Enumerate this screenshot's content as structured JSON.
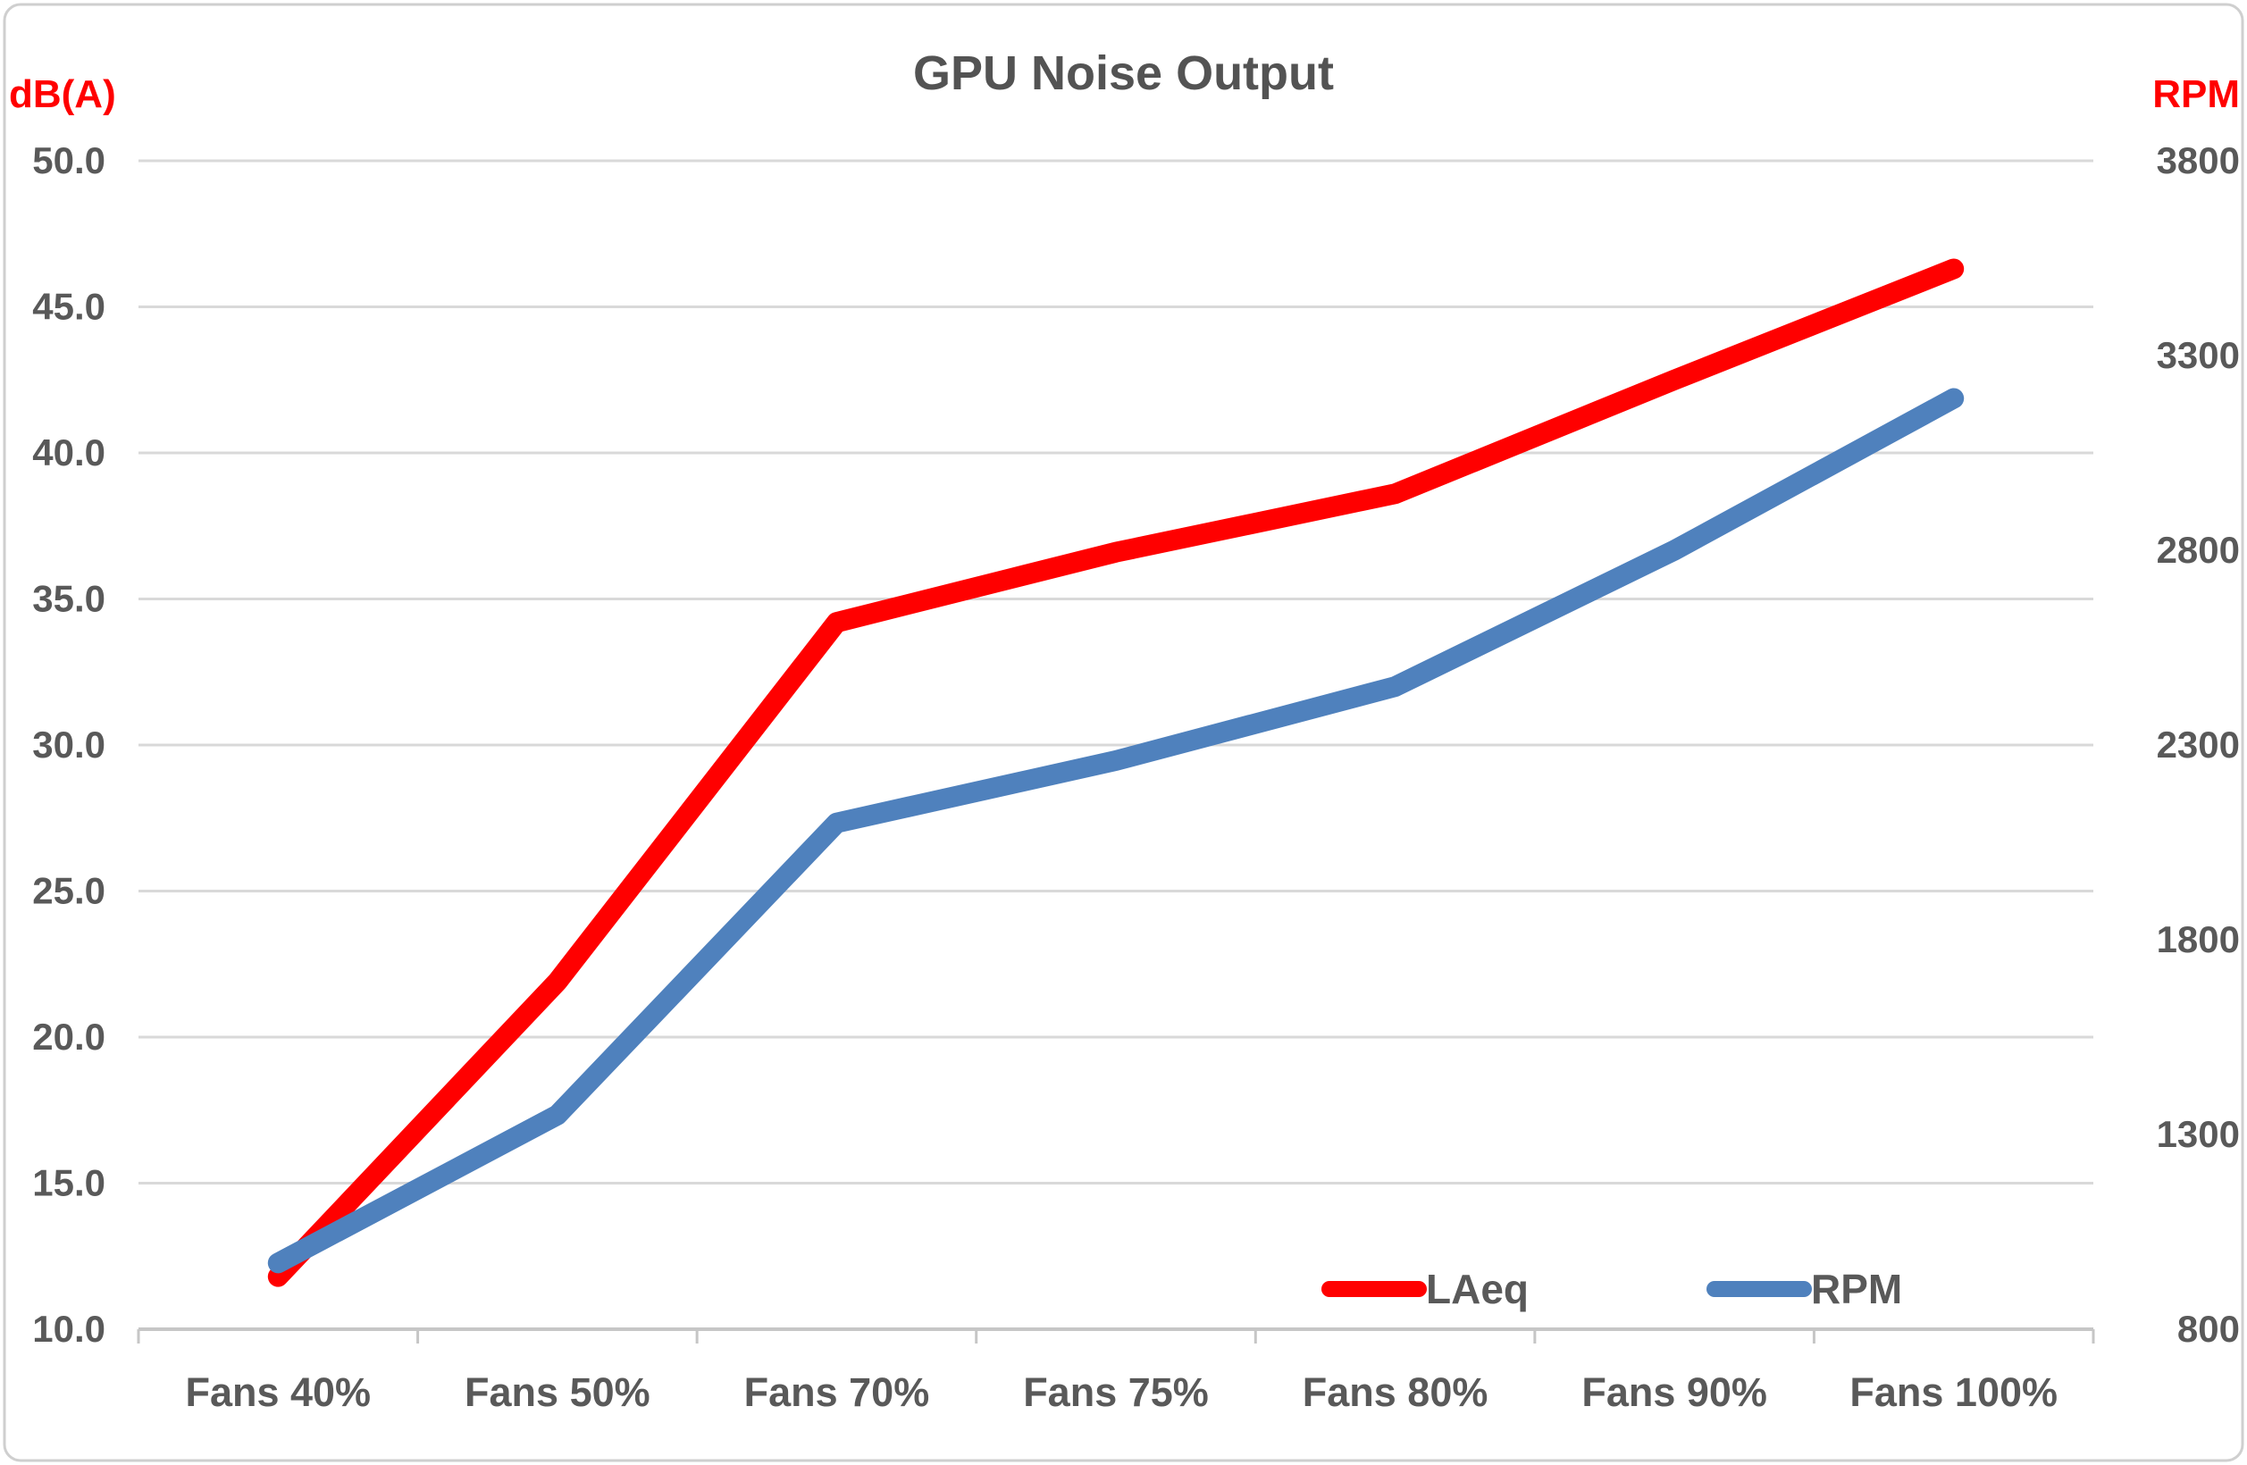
{
  "title": "GPU Noise Output",
  "left_axis": {
    "label": "dB(A)",
    "min": 10,
    "max": 50,
    "ticks": [
      "50.0",
      "45.0",
      "40.0",
      "35.0",
      "30.0",
      "25.0",
      "20.0",
      "15.0",
      "10.0"
    ]
  },
  "right_axis": {
    "label": "RPM",
    "min": 800,
    "max": 3800,
    "ticks": [
      "3800",
      "3300",
      "2800",
      "2300",
      "1800",
      "1300",
      "800"
    ]
  },
  "chart_data": {
    "type": "line",
    "categories": [
      "Fans 40%",
      "Fans 50%",
      "Fans 70%",
      "Fans 75%",
      "Fans 80%",
      "Fans 90%",
      "Fans 100%"
    ],
    "series": [
      {
        "name": "LAeq",
        "axis": "left",
        "color": "#ff0000",
        "values": [
          11.8,
          21.9,
          34.2,
          36.6,
          38.6,
          42.5,
          46.3
        ]
      },
      {
        "name": "RPM",
        "axis": "right",
        "color": "#4f81bd",
        "values": [
          970,
          1350,
          2100,
          2260,
          2450,
          2800,
          3190
        ]
      }
    ],
    "ylim_left": [
      10,
      50
    ],
    "ylim_right": [
      800,
      3800
    ],
    "grid": true,
    "legend_position": "inside-bottom-right"
  },
  "colors": {
    "laeq_line": "#ff0000",
    "rpm_line": "#4f81bd",
    "axis_title": "#ff0000",
    "tick_text": "#595959",
    "title_text": "#535353",
    "gridline": "#d9d9d9",
    "axis_line": "#c6c6c6",
    "border": "#cfcfcf",
    "background": "#ffffff"
  }
}
